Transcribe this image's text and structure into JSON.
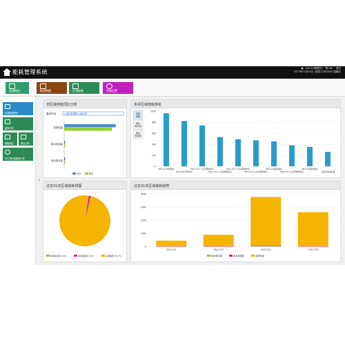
{
  "app": {
    "title": "能耗管理系统",
    "user": "admin(管理员)",
    "notice": "帮(36)",
    "exit": "退出",
    "datetime": "2017年07月05日 (周四)15时28分 星期四"
  },
  "modules": [
    {
      "label": "运维概况",
      "color": "#2e9e6e"
    },
    {
      "label": "能源数据",
      "color": "#8b4513"
    },
    {
      "label": "区域能耗",
      "color": "#2e8b57"
    },
    {
      "label": "系统设置",
      "color": "#c020c0"
    }
  ],
  "sidebar": [
    {
      "label": "区域能耗概况"
    },
    {
      "label": "能耗分析"
    },
    {
      "label": "能耗排名"
    },
    {
      "label": "峰谷分析"
    },
    {
      "label": "非工作时段能耗分析"
    }
  ],
  "panels": {
    "ratio": {
      "title": "日区域用能同比分析",
      "select_label": "重庆东站",
      "select_value": "(当前)各楼层公用区域",
      "chart_data": {
        "type": "bar",
        "categories": [
          "总用电量",
          "溴水机组量",
          "纯水制冷量"
        ],
        "series": [
          {
            "name": "今日",
            "values": [
              4200,
              60,
              90
            ],
            "color": "#4a8cc4"
          },
          {
            "name": "昨日",
            "values": [
              3900,
              50,
              80
            ],
            "color": "#9acd32"
          }
        ]
      }
    },
    "ranking": {
      "title": "本月区域用能排名",
      "tabs": [
        "总用电量",
        "纯水制冷量",
        "溴水机组量"
      ],
      "chart_data": {
        "type": "bar",
        "categories": [
          "UPFC-0(东厅配电室)",
          "UPFC-0(东厅配电室)",
          "PECC-0F-1(一层东侧配电室)",
          "PECC-0F-1(一层东侧配电室)",
          "PECC-0F-2(一层东侧配电室)",
          "PECC-0F-2(二层东侧配电室)",
          "UPFC-2(南区配电室)",
          "PECC-0F-3(二层西侧配电室)",
          "UPFC-3(西区配电室)",
          "二楼东区变频机组"
        ],
        "values": [
          960,
          820,
          740,
          530,
          490,
          470,
          450,
          380,
          350,
          260
        ],
        "ylim": [
          0,
          1000
        ],
        "color": "#2a9ccc"
      }
    },
    "pie": {
      "title": "过去31天区域能耗饼图",
      "chart_data": {
        "type": "pie",
        "series": [
          {
            "name": "纯水制冷量",
            "percent": 0.61,
            "color": "#90c840"
          },
          {
            "name": "溴水机组量",
            "percent": 1.22,
            "color": "#e8208c"
          },
          {
            "name": "总用电量",
            "percent": 98.17,
            "color": "#f5b400"
          }
        ],
        "legend_labels": [
          "纯水制冷量 0.61%",
          "溴水机组量 1.22%",
          "总用电量 98.17%"
        ]
      }
    },
    "trend": {
      "title": "过去31天区域能耗趋势",
      "chart_data": {
        "type": "bar",
        "categories": [
          "2017/7/2",
          "2017/7/3",
          "2017/7/4",
          "2017/7/5"
        ],
        "series": [
          {
            "name": "纯水制冷量",
            "values": [
              0,
              0,
              20,
              0
            ],
            "color": "#90c840"
          },
          {
            "name": "溴水机组量",
            "values": [
              5,
              5,
              45,
              5
            ],
            "color": "#e8208c"
          },
          {
            "name": "总用电量",
            "values": [
              430,
              880,
              3700,
              2600
            ],
            "color": "#f5b400"
          }
        ],
        "ylim": [
          0,
          4000
        ]
      }
    }
  }
}
